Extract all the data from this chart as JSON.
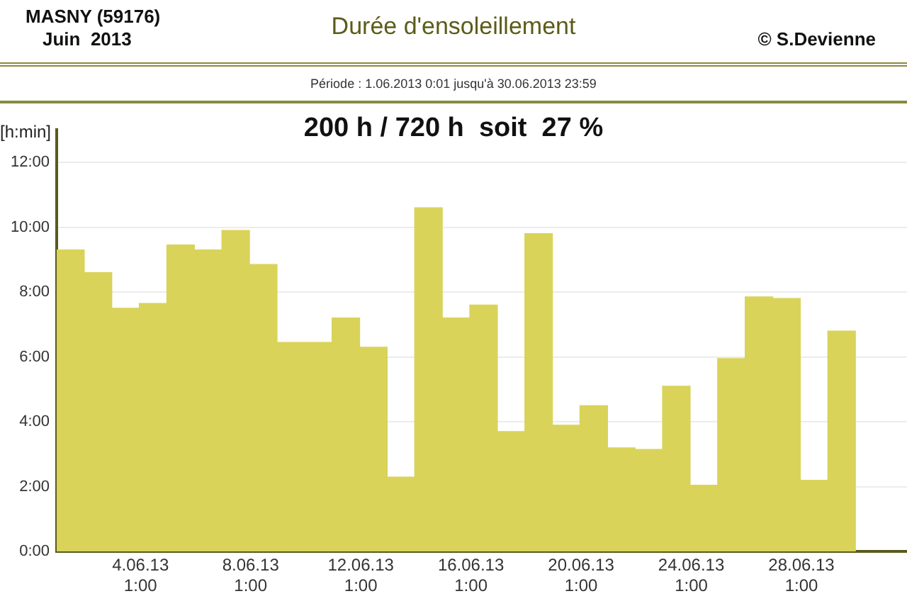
{
  "chart_data": {
    "type": "bar",
    "title": "Durée d'ensoleillement",
    "ylabel": "[h:min]",
    "annotations": [
      "MASNY (59176)",
      "Juin  2013",
      "© S.Devienne",
      "Période :  1.06.2013   0:01   jusqu'à  30.06.2013   23:59",
      "200 h / 720 h  soit  27 %"
    ],
    "x": [
      "2013-06-01T12:00",
      "2013-06-02T12:00",
      "2013-06-03T12:00",
      "2013-06-04T12:00",
      "2013-06-05T12:00",
      "2013-06-06T12:00",
      "2013-06-07T12:00",
      "2013-06-08T12:00",
      "2013-06-09T12:00",
      "2013-06-10T12:00",
      "2013-06-11T12:00",
      "2013-06-12T12:00",
      "2013-06-13T12:00",
      "2013-06-14T12:00",
      "2013-06-15T12:00",
      "2013-06-16T12:00",
      "2013-06-17T12:00",
      "2013-06-18T12:00",
      "2013-06-19T12:00",
      "2013-06-20T12:00",
      "2013-06-21T12:00",
      "2013-06-22T12:00",
      "2013-06-23T12:00",
      "2013-06-24T12:00",
      "2013-06-25T12:00",
      "2013-06-26T12:00",
      "2013-06-27T12:00",
      "2013-06-28T12:00",
      "2013-06-29T12:00"
    ],
    "values": [
      9.3,
      8.6,
      7.5,
      7.65,
      9.45,
      9.3,
      9.9,
      8.85,
      6.45,
      6.45,
      7.2,
      6.3,
      2.3,
      10.6,
      7.2,
      7.6,
      3.7,
      9.8,
      3.9,
      4.5,
      3.2,
      3.15,
      5.1,
      2.05,
      5.95,
      7.85,
      7.8,
      2.2,
      6.8
    ],
    "color": "#d9d35a",
    "xlim": [
      "2013-06-01T00:00",
      "2013-07-01T21:00"
    ],
    "xticks": [
      {
        "value": "2013-06-04T01:00",
        "label": "4.06.13\n1:00"
      },
      {
        "value": "2013-06-08T01:00",
        "label": "8.06.13\n1:00"
      },
      {
        "value": "2013-06-12T01:00",
        "label": "12.06.13\n1:00"
      },
      {
        "value": "2013-06-16T01:00",
        "label": "16.06.13\n1:00"
      },
      {
        "value": "2013-06-20T01:00",
        "label": "20.06.13\n1:00"
      },
      {
        "value": "2013-06-24T01:00",
        "label": "24.06.13\n1:00"
      },
      {
        "value": "2013-06-28T01:00",
        "label": "28.06.13\n1:00"
      }
    ],
    "ylim": [
      0,
      13
    ],
    "yticks": [
      {
        "value": 0,
        "label": "0:00"
      },
      {
        "value": 2,
        "label": "2:00"
      },
      {
        "value": 4,
        "label": "4:00"
      },
      {
        "value": 6,
        "label": "6:00"
      },
      {
        "value": 8,
        "label": "8:00"
      },
      {
        "value": 10,
        "label": "10:00"
      },
      {
        "value": 12,
        "label": "12:00"
      }
    ],
    "grid": "y"
  }
}
